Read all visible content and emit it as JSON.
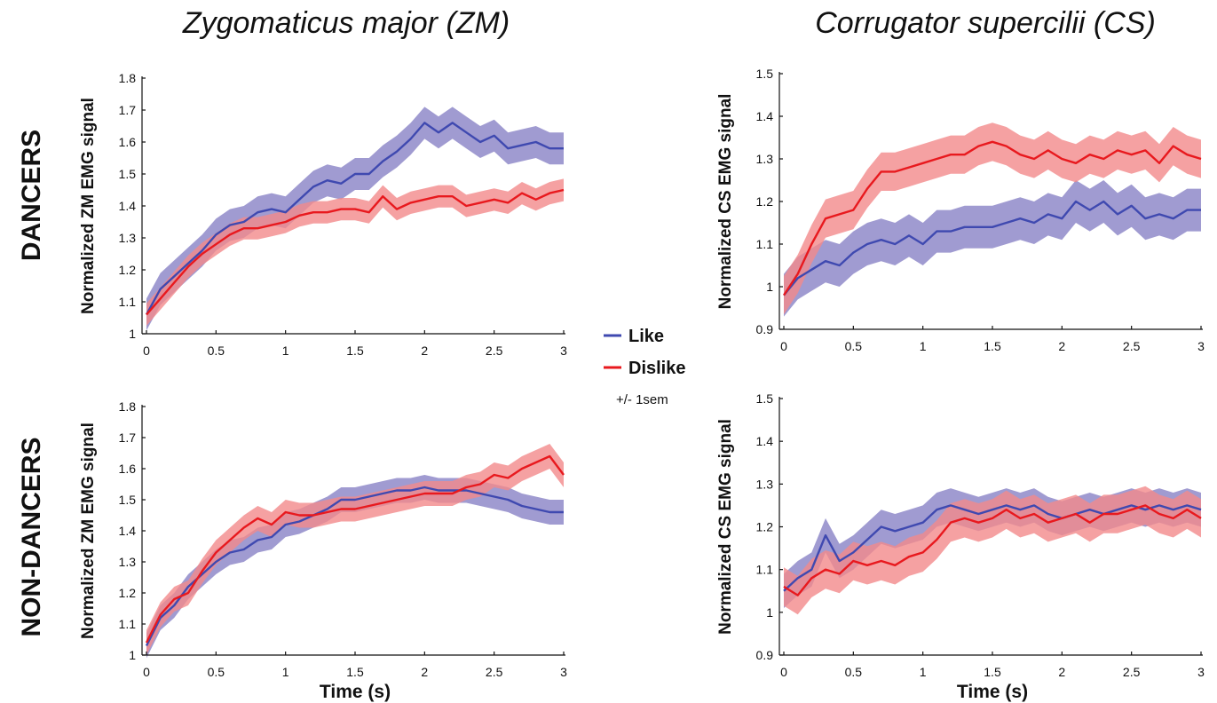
{
  "column_titles": [
    "Zygomaticus major (ZM)",
    "Corrugator supercilii (CS)"
  ],
  "row_labels": [
    "DANCERS",
    "NON-DANCERS"
  ],
  "legend": {
    "entries": [
      {
        "label": "Like",
        "color": "#3f49b0"
      },
      {
        "label": "Dislike",
        "color": "#e8191e"
      }
    ],
    "note": "+/- 1sem"
  },
  "colors": {
    "like_line": "#3f49b0",
    "like_band": "#8f89c9",
    "dislike_line": "#e8191e",
    "dislike_band": "#f2898b"
  },
  "chart_data": [
    {
      "type": "line",
      "row": "DANCERS",
      "column": "Zygomaticus major (ZM)",
      "ylabel": "Normalized ZM EMG signal",
      "xlabel": "",
      "xlim": [
        0,
        3
      ],
      "ylim": [
        1,
        1.8
      ],
      "x_ticks": [
        "0",
        "0.5",
        "1",
        "1.5",
        "2",
        "2.5",
        "3"
      ],
      "y_ticks": [
        "1",
        "1.1",
        "1.2",
        "1.3",
        "1.4",
        "1.5",
        "1.6",
        "1.7",
        "1.8"
      ],
      "x": [
        0,
        0.1,
        0.2,
        0.3,
        0.4,
        0.5,
        0.6,
        0.7,
        0.8,
        0.9,
        1.0,
        1.1,
        1.2,
        1.3,
        1.4,
        1.5,
        1.6,
        1.7,
        1.8,
        1.9,
        2.0,
        2.1,
        2.2,
        2.3,
        2.4,
        2.5,
        2.6,
        2.7,
        2.8,
        2.9,
        3.0
      ],
      "series": [
        {
          "name": "Like",
          "values": [
            1.06,
            1.14,
            1.18,
            1.22,
            1.26,
            1.31,
            1.34,
            1.35,
            1.38,
            1.39,
            1.38,
            1.42,
            1.46,
            1.48,
            1.47,
            1.5,
            1.5,
            1.54,
            1.57,
            1.61,
            1.66,
            1.63,
            1.66,
            1.63,
            1.6,
            1.62,
            1.58,
            1.59,
            1.6,
            1.58,
            1.58
          ],
          "sem": 0.05
        },
        {
          "name": "Dislike",
          "values": [
            1.06,
            1.11,
            1.16,
            1.21,
            1.25,
            1.28,
            1.31,
            1.33,
            1.33,
            1.34,
            1.35,
            1.37,
            1.38,
            1.38,
            1.39,
            1.39,
            1.38,
            1.43,
            1.39,
            1.41,
            1.42,
            1.43,
            1.43,
            1.4,
            1.41,
            1.42,
            1.41,
            1.44,
            1.42,
            1.44,
            1.45
          ],
          "sem": 0.035
        }
      ]
    },
    {
      "type": "line",
      "row": "DANCERS",
      "column": "Corrugator supercilii (CS)",
      "ylabel": "Normalized CS EMG signal",
      "xlabel": "",
      "xlim": [
        0,
        3
      ],
      "ylim": [
        0.9,
        1.5
      ],
      "x_ticks": [
        "0",
        "0.5",
        "1",
        "1.5",
        "2",
        "2.5",
        "3"
      ],
      "y_ticks": [
        "0.9",
        "1",
        "1.1",
        "1.2",
        "1.3",
        "1.4",
        "1.5"
      ],
      "x": [
        0,
        0.1,
        0.2,
        0.3,
        0.4,
        0.5,
        0.6,
        0.7,
        0.8,
        0.9,
        1.0,
        1.1,
        1.2,
        1.3,
        1.4,
        1.5,
        1.6,
        1.7,
        1.8,
        1.9,
        2.0,
        2.1,
        2.2,
        2.3,
        2.4,
        2.5,
        2.6,
        2.7,
        2.8,
        2.9,
        3.0
      ],
      "series": [
        {
          "name": "Like",
          "values": [
            0.98,
            1.02,
            1.04,
            1.06,
            1.05,
            1.08,
            1.1,
            1.11,
            1.1,
            1.12,
            1.1,
            1.13,
            1.13,
            1.14,
            1.14,
            1.14,
            1.15,
            1.16,
            1.15,
            1.17,
            1.16,
            1.2,
            1.18,
            1.2,
            1.17,
            1.19,
            1.16,
            1.17,
            1.16,
            1.18,
            1.18
          ],
          "sem": 0.05
        },
        {
          "name": "Dislike",
          "values": [
            0.98,
            1.03,
            1.1,
            1.16,
            1.17,
            1.18,
            1.23,
            1.27,
            1.27,
            1.28,
            1.29,
            1.3,
            1.31,
            1.31,
            1.33,
            1.34,
            1.33,
            1.31,
            1.3,
            1.32,
            1.3,
            1.29,
            1.31,
            1.3,
            1.32,
            1.31,
            1.32,
            1.29,
            1.33,
            1.31,
            1.3
          ],
          "sem": 0.045
        }
      ]
    },
    {
      "type": "line",
      "row": "NON-DANCERS",
      "column": "Zygomaticus major (ZM)",
      "ylabel": "Normalized ZM EMG signal",
      "xlabel": "Time (s)",
      "xlim": [
        0,
        3
      ],
      "ylim": [
        1,
        1.8
      ],
      "x_ticks": [
        "0",
        "0.5",
        "1",
        "1.5",
        "2",
        "2.5",
        "3"
      ],
      "y_ticks": [
        "1",
        "1.1",
        "1.2",
        "1.3",
        "1.4",
        "1.5",
        "1.6",
        "1.7",
        "1.8"
      ],
      "x": [
        0,
        0.1,
        0.2,
        0.3,
        0.4,
        0.5,
        0.6,
        0.7,
        0.8,
        0.9,
        1.0,
        1.1,
        1.2,
        1.3,
        1.4,
        1.5,
        1.6,
        1.7,
        1.8,
        1.9,
        2.0,
        2.1,
        2.2,
        2.3,
        2.4,
        2.5,
        2.6,
        2.7,
        2.8,
        2.9,
        3.0
      ],
      "series": [
        {
          "name": "Like",
          "values": [
            1.03,
            1.12,
            1.16,
            1.22,
            1.26,
            1.3,
            1.33,
            1.34,
            1.37,
            1.38,
            1.42,
            1.43,
            1.45,
            1.47,
            1.5,
            1.5,
            1.51,
            1.52,
            1.53,
            1.53,
            1.54,
            1.53,
            1.53,
            1.53,
            1.52,
            1.51,
            1.5,
            1.48,
            1.47,
            1.46,
            1.46
          ],
          "sem": 0.04
        },
        {
          "name": "Dislike",
          "values": [
            1.04,
            1.13,
            1.18,
            1.2,
            1.27,
            1.33,
            1.37,
            1.41,
            1.44,
            1.42,
            1.46,
            1.45,
            1.45,
            1.46,
            1.47,
            1.47,
            1.48,
            1.49,
            1.5,
            1.51,
            1.52,
            1.52,
            1.52,
            1.54,
            1.55,
            1.58,
            1.57,
            1.6,
            1.62,
            1.64,
            1.58
          ],
          "sem": 0.04
        }
      ]
    },
    {
      "type": "line",
      "row": "NON-DANCERS",
      "column": "Corrugator supercilii (CS)",
      "ylabel": "Normalized CS EMG signal",
      "xlabel": "Time (s)",
      "xlim": [
        0,
        3
      ],
      "ylim": [
        0.9,
        1.5
      ],
      "x_ticks": [
        "0",
        "0.5",
        "1",
        "1.5",
        "2",
        "2.5",
        "3"
      ],
      "y_ticks": [
        "0.9",
        "1",
        "1.1",
        "1.2",
        "1.3",
        "1.4",
        "1.5"
      ],
      "x": [
        0,
        0.1,
        0.2,
        0.3,
        0.4,
        0.5,
        0.6,
        0.7,
        0.8,
        0.9,
        1.0,
        1.1,
        1.2,
        1.3,
        1.4,
        1.5,
        1.6,
        1.7,
        1.8,
        1.9,
        2.0,
        2.1,
        2.2,
        2.3,
        2.4,
        2.5,
        2.6,
        2.7,
        2.8,
        2.9,
        3.0
      ],
      "series": [
        {
          "name": "Like",
          "values": [
            1.05,
            1.08,
            1.1,
            1.18,
            1.12,
            1.14,
            1.17,
            1.2,
            1.19,
            1.2,
            1.21,
            1.24,
            1.25,
            1.24,
            1.23,
            1.24,
            1.25,
            1.24,
            1.25,
            1.23,
            1.22,
            1.23,
            1.24,
            1.23,
            1.24,
            1.25,
            1.24,
            1.25,
            1.24,
            1.25,
            1.24
          ],
          "sem": 0.04
        },
        {
          "name": "Dislike",
          "values": [
            1.06,
            1.04,
            1.08,
            1.1,
            1.09,
            1.12,
            1.11,
            1.12,
            1.11,
            1.13,
            1.14,
            1.17,
            1.21,
            1.22,
            1.21,
            1.22,
            1.24,
            1.22,
            1.23,
            1.21,
            1.22,
            1.23,
            1.21,
            1.23,
            1.23,
            1.24,
            1.25,
            1.23,
            1.22,
            1.24,
            1.22
          ],
          "sem": 0.045
        }
      ]
    }
  ]
}
